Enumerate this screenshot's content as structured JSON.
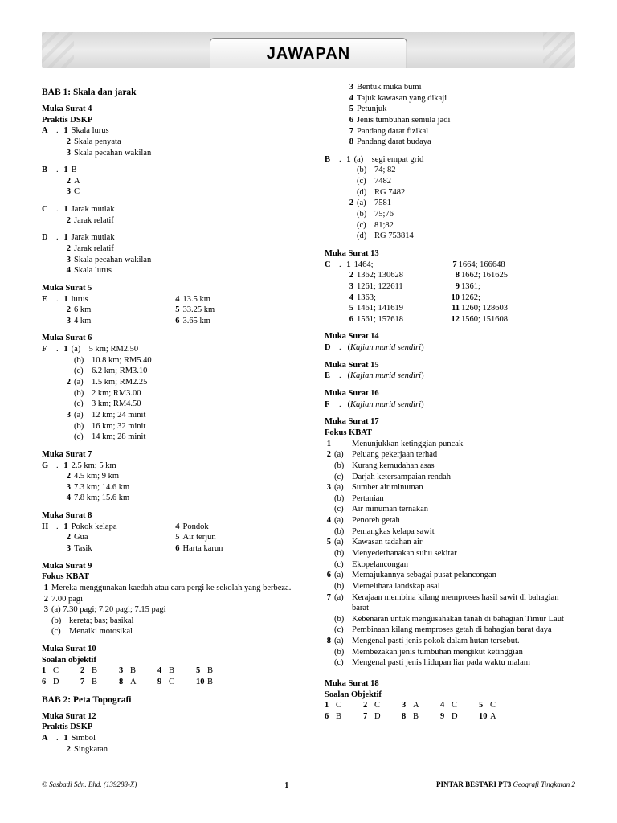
{
  "banner": "JAWAPAN",
  "left": {
    "bab1_title": "BAB 1: Skala dan jarak",
    "ms4": "Muka Surat 4",
    "praktis": "Praktis DSKP",
    "A": {
      "label": "A",
      "items": [
        "Skala lurus",
        "Skala penyata",
        "Skala pecahan wakilan"
      ]
    },
    "B": {
      "label": "B",
      "items": [
        "B",
        "A",
        "C"
      ]
    },
    "C": {
      "label": "C",
      "items": [
        "Jarak mutlak",
        "Jarak relatif"
      ]
    },
    "D": {
      "label": "D",
      "items": [
        "Jarak mutlak",
        "Jarak relatif",
        "Skala pecahan wakilan",
        "Skala lurus"
      ]
    },
    "ms5": "Muka Surat 5",
    "E": {
      "label": "E",
      "left": [
        "lurus",
        "6 km",
        "4 km"
      ],
      "right": [
        "13.5 km",
        "33.25 km",
        "3.65 km"
      ]
    },
    "ms6": "Muka Surat 6",
    "F": {
      "label": "F",
      "g1": [
        "5 km; RM2.50",
        "10.8 km; RM5.40",
        "6.2 km; RM3.10"
      ],
      "g2": [
        "1.5 km; RM2.25",
        "2 km; RM3.00",
        "3 km; RM4.50"
      ],
      "g3": [
        "12 km; 24 minit",
        "16 km; 32 minit",
        "14 km; 28 minit"
      ]
    },
    "ms7": "Muka Surat 7",
    "G": {
      "label": "G",
      "items": [
        "2.5 km; 5 km",
        "4.5 km; 9 km",
        "7.3 km; 14.6 km",
        "7.8 km; 15.6 km"
      ]
    },
    "ms8": "Muka Surat 8",
    "H": {
      "label": "H",
      "left": [
        "Pokok kelapa",
        "Gua",
        "Tasik"
      ],
      "right": [
        "Pondok",
        "Air terjun",
        "Harta karun"
      ]
    },
    "ms9": "Muka Surat 9",
    "fokus": "Fokus KBAT",
    "kbat1": "Mereka menggunakan kaedah atau cara pergi ke sekolah yang berbeza.",
    "kbat2": "7.00 pagi",
    "kbat3a": "(a) 7.30 pagi; 7.20 pagi; 7.15 pagi",
    "kbat3b": "kereta; bas; basikal",
    "kbat3c": "Menaiki motosikal",
    "ms10": "Muka Surat 10",
    "soalan": "Soalan objektif",
    "obj1": [
      [
        "1",
        "C"
      ],
      [
        "2",
        "B"
      ],
      [
        "3",
        "B"
      ],
      [
        "4",
        "B"
      ],
      [
        "5",
        "B"
      ]
    ],
    "obj2": [
      [
        "6",
        "D"
      ],
      [
        "7",
        "B"
      ],
      [
        "8",
        "A"
      ],
      [
        "9",
        "C"
      ],
      [
        "10",
        "B"
      ]
    ],
    "bab2_title": "BAB 2: Peta Topografi",
    "ms12": "Muka Surat 12",
    "A2": {
      "label": "A",
      "items": [
        "Simbol",
        "Singkatan"
      ]
    }
  },
  "right": {
    "cont": [
      "Bentuk muka bumi",
      "Tajuk kawasan yang dikaji",
      "Petunjuk",
      "Jenis tumbuhan semula jadi",
      "Pandang darat fizikal",
      "Pandang darat budaya"
    ],
    "B": {
      "label": "B",
      "g1": [
        "segi empat grid",
        "74; 82",
        "7482",
        "RG 7482"
      ],
      "g2": [
        "7581",
        "75;76",
        "81;82",
        "RG 753814"
      ]
    },
    "ms13": "Muka Surat 13",
    "C": {
      "label": "C",
      "left": [
        "1464;",
        "1362; 130628",
        "1261; 122611",
        "1363;",
        "1461; 141619",
        "1561; 157618"
      ],
      "rn": [
        "7",
        "8",
        "9",
        "10",
        "11",
        "12"
      ],
      "right": [
        "1664; 166648",
        "1662; 161625",
        "1361;",
        "1262;",
        "1260; 128603",
        "1560; 151608"
      ]
    },
    "ms14": "Muka Surat 14",
    "D": "D",
    "ms15": "Muka Surat 15",
    "E": "E",
    "ms16": "Muka Surat 16",
    "F": "F",
    "kajian": "Kajian murid sendiri",
    "ms17": "Muka Surat 17",
    "fokus": "Fokus KBAT",
    "k1": "Menunjukkan ketinggian puncak",
    "k2": [
      "Peluang pekerjaan terhad",
      "Kurang kemudahan asas",
      "Darjah ketersampaian rendah"
    ],
    "k3": [
      "Sumber air minuman",
      "Pertanian",
      "Air minuman ternakan"
    ],
    "k4": [
      "Penoreh getah",
      "Pemangkas kelapa sawit"
    ],
    "k5": [
      "Kawasan tadahan air",
      "Menyederhanakan suhu sekitar",
      "Ekopelancongan"
    ],
    "k6": [
      "Memajukannya sebagai pusat pelancongan",
      "Memelihara landskap asal"
    ],
    "k7": [
      "Kerajaan membina kilang memproses hasil sawit di bahagian barat",
      "Kebenaran untuk mengusahakan tanah di bahagian Timur Laut",
      "Pembinaan kilang memproses getah di bahagian barat daya"
    ],
    "k8": [
      "Mengenal pasti jenis pokok dalam hutan tersebut.",
      "Membezakan jenis tumbuhan mengikut ketinggian",
      "Mengenal pasti jenis hidupan liar pada waktu malam"
    ],
    "ms18": "Muka Surat 18",
    "soalan": "Soalan Objektif",
    "obj1": [
      [
        "1",
        "C"
      ],
      [
        "2",
        "C"
      ],
      [
        "3",
        "A"
      ],
      [
        "4",
        "C"
      ],
      [
        "5",
        "C"
      ]
    ],
    "obj2": [
      [
        "6",
        "B"
      ],
      [
        "7",
        "D"
      ],
      [
        "8",
        "B"
      ],
      [
        "9",
        "D"
      ],
      [
        "10",
        "A"
      ]
    ]
  },
  "footer": {
    "left": "© Sasbadi Sdn. Bhd. (139288-X)",
    "page": "1",
    "right_bold": "PINTAR BESTARI PT3",
    "right_it": " Geografi Tingkatan 2"
  }
}
